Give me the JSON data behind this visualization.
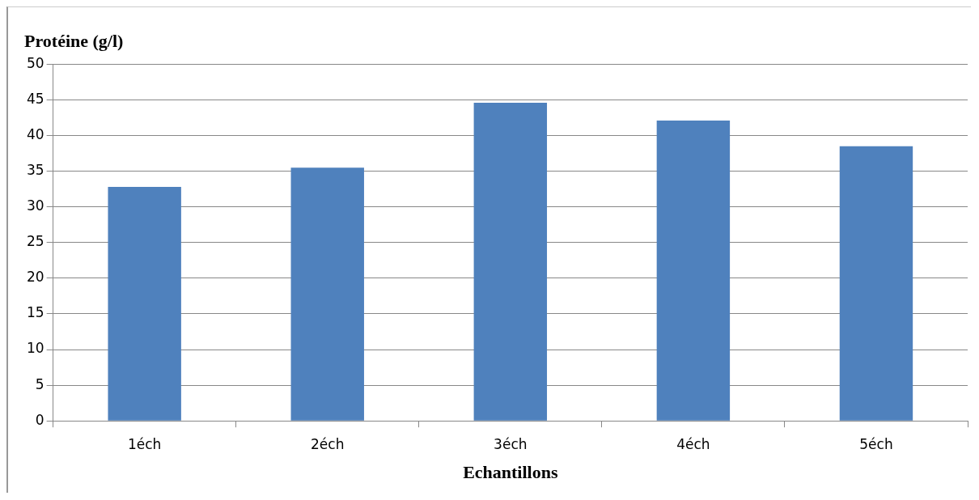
{
  "chart_data": {
    "type": "bar",
    "ylabel": "Protéine (g/l)",
    "xlabel": "Echantillons",
    "categories": [
      "1éch",
      "2éch",
      "3éch",
      "4éch",
      "5éch"
    ],
    "values": [
      32.8,
      35.5,
      44.6,
      42.1,
      38.5
    ],
    "color": "#4f81bd",
    "ylim": [
      0,
      50
    ],
    "yticks": [
      0,
      5,
      10,
      15,
      20,
      25,
      30,
      35,
      40,
      45,
      50
    ],
    "grid": "y"
  }
}
